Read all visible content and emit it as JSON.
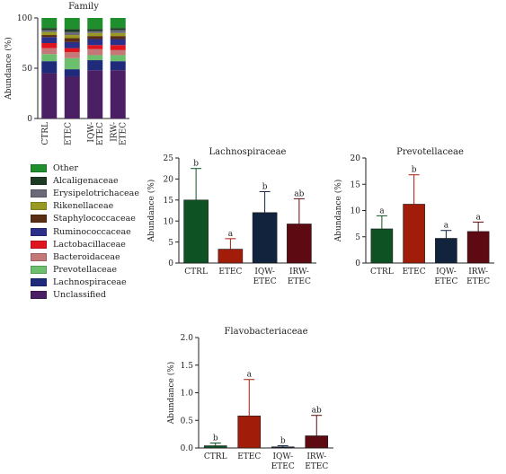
{
  "chart_data": [
    {
      "id": "family",
      "type": "bar",
      "stacked": true,
      "title": "Family",
      "ylabel": "Abundance (%)",
      "ylim": [
        0,
        100
      ],
      "yticks": [
        0,
        50,
        100
      ],
      "categories": [
        "CTRL",
        "ETEC",
        "IQW-\nETEC",
        "IRW-\nETEC"
      ],
      "series": [
        {
          "name": "Unclassified",
          "color": "#4b1f63",
          "values": [
            45,
            42,
            48,
            48
          ]
        },
        {
          "name": "Lachnospiraceae",
          "color": "#1f2a7a",
          "values": [
            12,
            7,
            10,
            9
          ]
        },
        {
          "name": "Prevotellaceae",
          "color": "#6cbf6c",
          "values": [
            7,
            11,
            5,
            6
          ]
        },
        {
          "name": "Bacteroidaceae",
          "color": "#c47878",
          "values": [
            6,
            6,
            6,
            5
          ]
        },
        {
          "name": "Lactobacillaceae",
          "color": "#e0141e",
          "values": [
            5,
            4,
            4,
            5
          ]
        },
        {
          "name": "Ruminococcaceae",
          "color": "#2a2f8a",
          "values": [
            6,
            6,
            6,
            6
          ]
        },
        {
          "name": "Staphylococcaceae",
          "color": "#5a2e15",
          "values": [
            2,
            4,
            3,
            3
          ]
        },
        {
          "name": "Rikenellaceae",
          "color": "#9a9a22",
          "values": [
            3,
            3,
            3,
            3
          ]
        },
        {
          "name": "Erysipelotrichaceae",
          "color": "#6a6a78",
          "values": [
            2,
            3,
            2,
            3
          ]
        },
        {
          "name": "Alcaligenaceae",
          "color": "#1d3a22",
          "values": [
            2,
            3,
            2,
            2
          ]
        },
        {
          "name": "Other",
          "color": "#1f8f2e",
          "values": [
            10,
            11,
            11,
            10
          ]
        }
      ]
    },
    {
      "id": "lachno",
      "type": "bar",
      "title": "Lachnospiraceae",
      "ylabel": "Abundance (%)",
      "ylim": [
        0,
        25
      ],
      "yticks": [
        0,
        5,
        10,
        15,
        20,
        25
      ],
      "categories": [
        "CTRL",
        "ETEC",
        "IQW-\nETEC",
        "IRW-\nETEC"
      ],
      "values": [
        15,
        3.3,
        12,
        9.3
      ],
      "errors": [
        7.5,
        2.5,
        5,
        6
      ],
      "letters": [
        "b",
        "a",
        "b",
        "ab"
      ],
      "colors": [
        "#0e5223",
        "#a11d0a",
        "#11233d",
        "#5e0a12"
      ]
    },
    {
      "id": "prevo",
      "type": "bar",
      "title": "Prevotellaceae",
      "ylabel": "Abundance (%)",
      "ylim": [
        0,
        20
      ],
      "yticks": [
        0,
        5,
        10,
        15,
        20
      ],
      "categories": [
        "CTRL",
        "ETEC",
        "IQW-\nETEC",
        "IRW-\nETEC"
      ],
      "values": [
        6.5,
        11.2,
        4.7,
        6
      ],
      "errors": [
        2.5,
        5.6,
        1.5,
        1.8
      ],
      "letters": [
        "a",
        "b",
        "a",
        "a"
      ],
      "colors": [
        "#0e5223",
        "#a11d0a",
        "#11233d",
        "#5e0a12"
      ]
    },
    {
      "id": "flavo",
      "type": "bar",
      "title": "Flavobacteriaceae",
      "ylabel": "Abundance (%)",
      "ylim": [
        0,
        2.0
      ],
      "yticks": [
        0.0,
        0.5,
        1.0,
        1.5,
        2.0
      ],
      "tickDecimals": 1,
      "categories": [
        "CTRL",
        "ETEC",
        "IQW-\nETEC",
        "IRW-\nETEC"
      ],
      "values": [
        0.04,
        0.58,
        0.02,
        0.22
      ],
      "errors": [
        0.05,
        0.66,
        0.02,
        0.37
      ],
      "letters": [
        "b",
        "a",
        "b",
        "ab"
      ],
      "colors": [
        "#0e5223",
        "#a11d0a",
        "#11233d",
        "#5e0a12"
      ]
    }
  ]
}
